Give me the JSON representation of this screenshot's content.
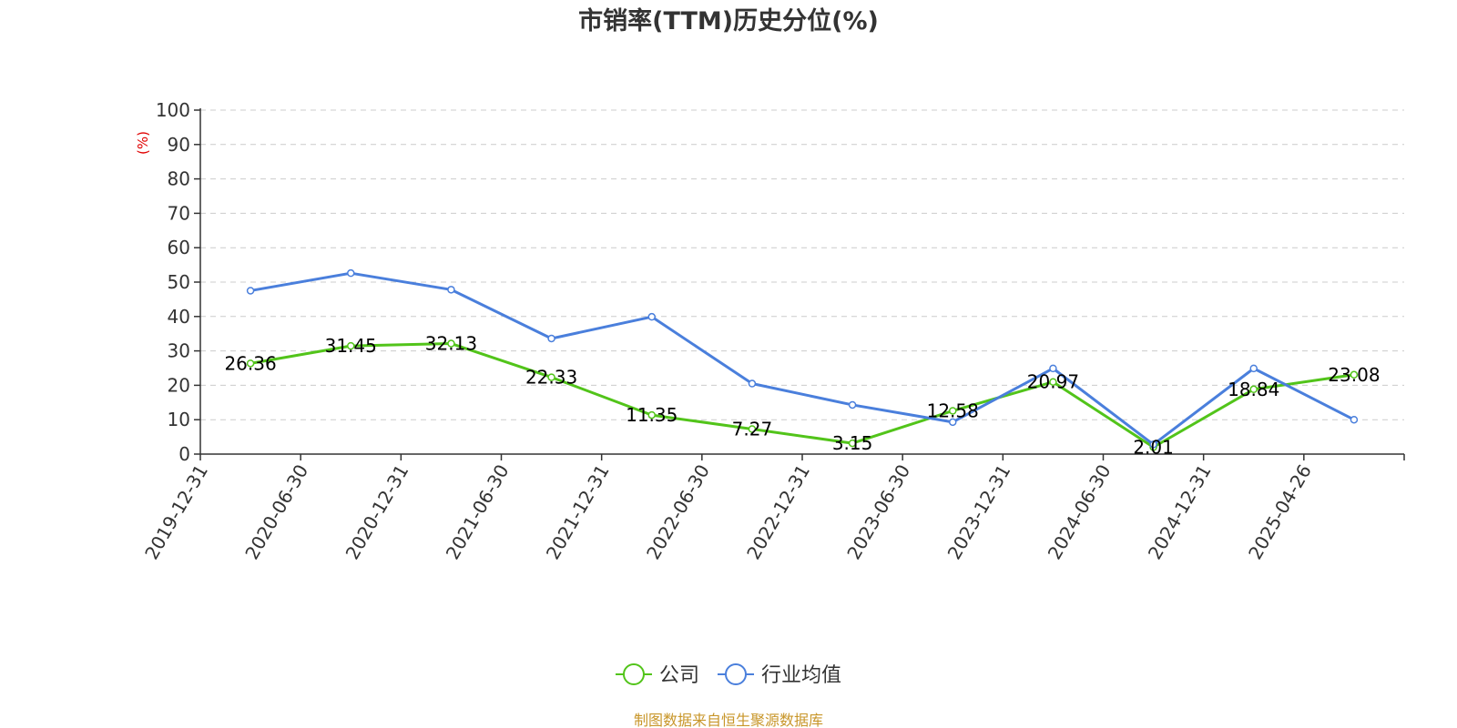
{
  "chart_data": {
    "type": "line",
    "title": "市销率(TTM)历史分位(%)",
    "ylabel": "(%)",
    "xlabel": "",
    "categories": [
      "2019-12-31",
      "2020-06-30",
      "2020-12-31",
      "2021-06-30",
      "2021-12-31",
      "2022-06-30",
      "2022-12-31",
      "2023-06-30",
      "2023-12-31",
      "2024-06-30",
      "2024-12-31",
      "2025-04-26"
    ],
    "ylim": [
      0,
      100
    ],
    "yticks": [
      0,
      10,
      20,
      30,
      40,
      50,
      60,
      70,
      80,
      90,
      100
    ],
    "grid": true,
    "legend_position": "bottom",
    "series": [
      {
        "name": "公司",
        "color": "#52c41a",
        "values": [
          26.36,
          31.45,
          32.13,
          22.33,
          11.35,
          7.27,
          3.15,
          12.58,
          20.97,
          2.01,
          18.84,
          23.08
        ],
        "labels": [
          "26.36",
          "31.45",
          "32.13",
          "22.33",
          "11.35",
          "7.27",
          "3.15",
          "12.58",
          "20.97",
          "2.01",
          "18.84",
          "23.08"
        ]
      },
      {
        "name": "行业均值",
        "color": "#4a7fdc",
        "values": [
          47.5,
          52.6,
          47.8,
          33.6,
          39.9,
          20.5,
          14.3,
          9.3,
          24.9,
          2.8,
          24.9,
          10.0
        ]
      }
    ],
    "unit_color": "#e00000"
  },
  "source": {
    "text": "制图数据来自恒生聚源数据库",
    "color": "#c8962a"
  }
}
